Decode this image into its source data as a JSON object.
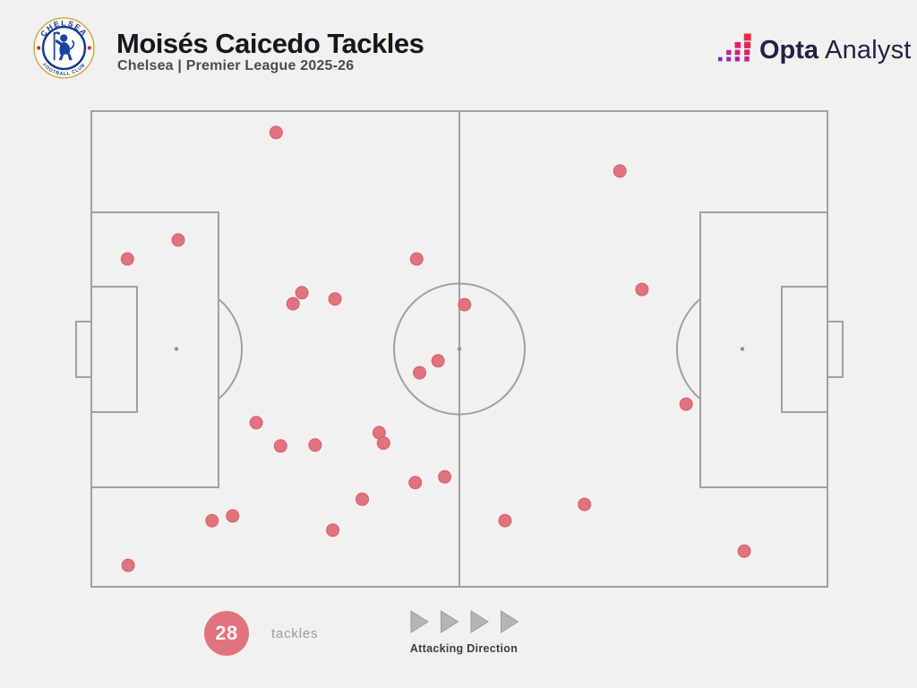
{
  "header": {
    "title": "Moisés Caicedo Tackles",
    "subtitle": "Chelsea | Premier League 2025-26",
    "club_badge": {
      "club": "Chelsea FC",
      "ring_top_text": "CHELSEA",
      "ring_bottom_text": "FOOTBALL CLUB"
    },
    "brand": {
      "name_bold": "Opta",
      "name_light": "Analyst"
    }
  },
  "footer": {
    "total_count": "28",
    "count_label": "tackles",
    "direction_label": "Attacking Direction"
  },
  "colors": {
    "background": "#f2f1ef",
    "pitch_line": "#a0a0a0",
    "tackle_dot": "#e1737e",
    "tackle_dot_edge": "#d2606e",
    "count_badge": "#e1737e",
    "title_text": "#16161e",
    "subtitle_text": "#4b4b4b",
    "brand_navy": "#262046",
    "arrow_gray": "#b5b5b5"
  },
  "chart_data": {
    "type": "scatter",
    "title": "Moisés Caicedo Tackles",
    "subtitle": "Chelsea | Premier League 2025-26",
    "metric": "tackles",
    "total": 28,
    "attacking_direction": "left-to-right",
    "coordinate_system": "percent of pitch: x 0=own goal line to 100=opponent goal line (attacking left-to-right); y 0=top touchline to 100=bottom touchline",
    "points": [
      {
        "x": 25.1,
        "y": 4.5
      },
      {
        "x": 11.8,
        "y": 27.1
      },
      {
        "x": 4.9,
        "y": 31.1
      },
      {
        "x": 44.2,
        "y": 31.1
      },
      {
        "x": 28.6,
        "y": 38.2
      },
      {
        "x": 27.4,
        "y": 40.5
      },
      {
        "x": 33.1,
        "y": 39.5
      },
      {
        "x": 50.7,
        "y": 40.7
      },
      {
        "x": 71.8,
        "y": 12.6
      },
      {
        "x": 74.8,
        "y": 37.5
      },
      {
        "x": 44.6,
        "y": 55.0
      },
      {
        "x": 47.1,
        "y": 52.5
      },
      {
        "x": 22.4,
        "y": 65.5
      },
      {
        "x": 25.7,
        "y": 70.4
      },
      {
        "x": 30.4,
        "y": 70.2
      },
      {
        "x": 39.1,
        "y": 67.6
      },
      {
        "x": 39.7,
        "y": 69.8
      },
      {
        "x": 44.0,
        "y": 78.1
      },
      {
        "x": 48.0,
        "y": 76.9
      },
      {
        "x": 36.8,
        "y": 81.6
      },
      {
        "x": 16.4,
        "y": 86.1
      },
      {
        "x": 19.2,
        "y": 85.1
      },
      {
        "x": 32.8,
        "y": 88.1
      },
      {
        "x": 5.0,
        "y": 95.5
      },
      {
        "x": 80.8,
        "y": 61.6
      },
      {
        "x": 67.0,
        "y": 82.7
      },
      {
        "x": 56.2,
        "y": 86.1
      },
      {
        "x": 88.7,
        "y": 92.5
      }
    ]
  }
}
